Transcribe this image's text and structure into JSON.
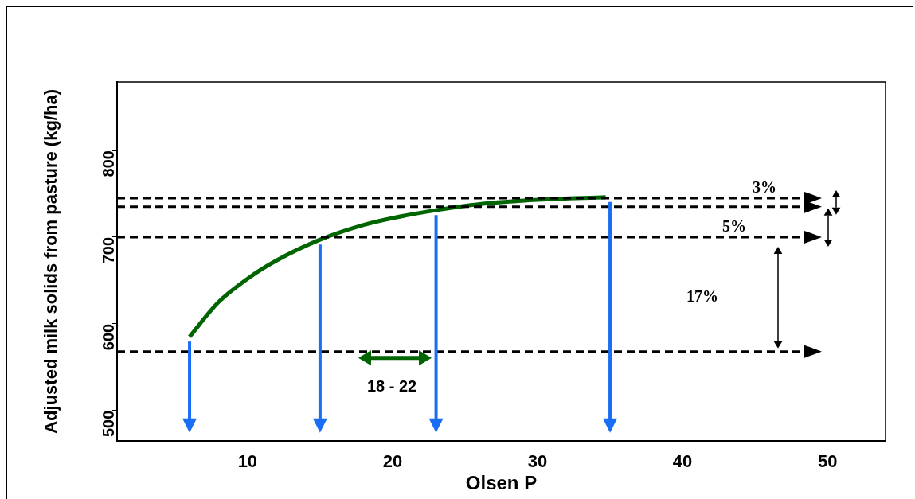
{
  "chart_data": {
    "type": "line",
    "xlabel": "Olsen P",
    "ylabel": "Adjusted milk solids from pasture (kg/ha)",
    "x": [
      6,
      8,
      10,
      12,
      15,
      18,
      20,
      23,
      26,
      30,
      34.7
    ],
    "series": [
      {
        "color": "#006400",
        "values": [
          585,
          625,
          652,
          673,
          697,
          714,
          722,
          731,
          738,
          743,
          746
        ]
      }
    ],
    "xlim": [
      1,
      54
    ],
    "xticks": [
      10,
      20,
      30,
      40,
      50
    ],
    "ylim": [
      465,
      879
    ],
    "yticks": [
      500,
      600,
      700,
      800
    ],
    "grid": false,
    "legend": false,
    "marker": "none",
    "line_style": "solid",
    "ref_lines": [
      {
        "axis": "y",
        "value": 745,
        "color": "#000000",
        "line_style": "dashed"
      },
      {
        "axis": "y",
        "value": 735,
        "color": "#000000",
        "line_style": "dashed"
      },
      {
        "axis": "y",
        "value": 700,
        "color": "#000000",
        "line_style": "dashed"
      },
      {
        "axis": "y",
        "value": 568,
        "color": "#000000",
        "line_style": "dashed"
      },
      {
        "axis": "x",
        "value": 6,
        "color": "#1a6ef5",
        "line_style": "solid"
      },
      {
        "axis": "x",
        "value": 15,
        "color": "#1a6ef5",
        "line_style": "solid"
      },
      {
        "axis": "x",
        "value": 23,
        "color": "#1a6ef5",
        "line_style": "solid"
      },
      {
        "axis": "x",
        "value": 35,
        "color": "#1a6ef5",
        "line_style": "solid"
      }
    ],
    "annotations": [
      "3%",
      "5%",
      "17%",
      "18 - 22"
    ]
  }
}
